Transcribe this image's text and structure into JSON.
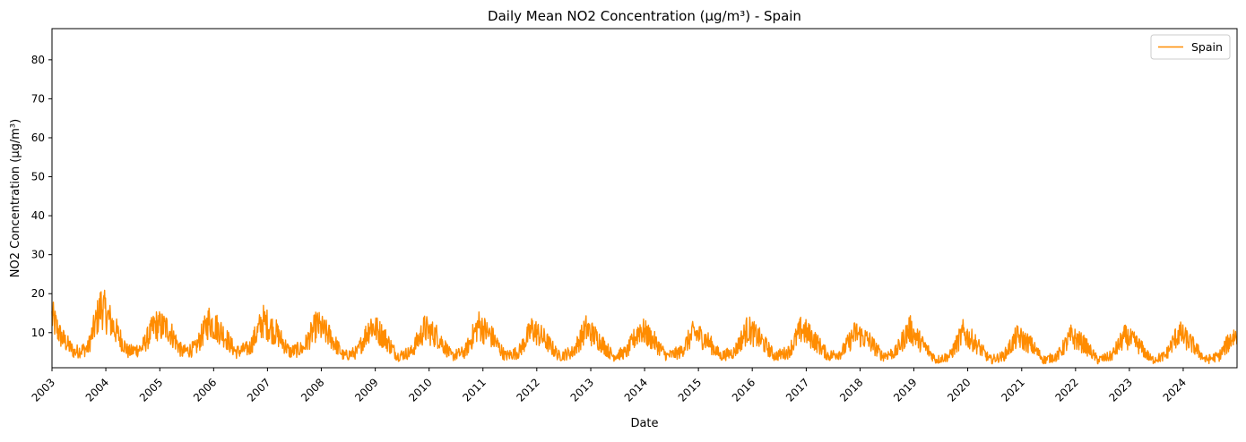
{
  "chart_data": {
    "type": "line",
    "title": "Daily Mean NO2 Concentration (µg/m³) - Spain",
    "xlabel": "Date",
    "ylabel": "NO2 Concentration (µg/m³)",
    "xlim": [
      "2003-01-01",
      "2024-12-31"
    ],
    "ylim": [
      1,
      88
    ],
    "y_ticks": [
      10,
      20,
      30,
      40,
      50,
      60,
      70,
      80
    ],
    "x_ticks": [
      "2003",
      "2004",
      "2005",
      "2006",
      "2007",
      "2008",
      "2009",
      "2010",
      "2011",
      "2012",
      "2013",
      "2014",
      "2015",
      "2016",
      "2017",
      "2018",
      "2019",
      "2020",
      "2021",
      "2022",
      "2023",
      "2024"
    ],
    "grid": false,
    "legend_position": "top-right",
    "series": [
      {
        "name": "Spain",
        "color": "#ff8c00",
        "x": [
          "2003-01-01",
          "2003-03-01",
          "2003-06-01",
          "2003-09-01",
          "2003-12-01",
          "2004-03-01",
          "2004-06-01",
          "2004-09-01",
          "2004-12-01",
          "2005-03-01",
          "2005-06-01",
          "2005-09-01",
          "2005-12-01",
          "2006-03-01",
          "2006-06-01",
          "2006-09-01",
          "2006-12-01",
          "2007-03-01",
          "2007-06-01",
          "2007-09-01",
          "2007-12-01",
          "2008-03-01",
          "2008-06-01",
          "2008-09-01",
          "2008-12-01",
          "2009-03-01",
          "2009-06-01",
          "2009-09-01",
          "2009-12-01",
          "2010-03-01",
          "2010-06-01",
          "2010-09-01",
          "2010-12-01",
          "2011-03-01",
          "2011-06-01",
          "2011-09-01",
          "2011-12-01",
          "2012-03-01",
          "2012-06-01",
          "2012-09-01",
          "2012-12-01",
          "2013-03-01",
          "2013-06-01",
          "2013-09-01",
          "2013-12-01",
          "2014-03-01",
          "2014-06-01",
          "2014-09-01",
          "2014-12-01",
          "2015-03-01",
          "2015-06-01",
          "2015-09-01",
          "2015-12-01",
          "2016-03-01",
          "2016-06-01",
          "2016-09-01",
          "2016-12-01",
          "2017-03-01",
          "2017-06-01",
          "2017-09-01",
          "2017-12-01",
          "2018-03-01",
          "2018-06-01",
          "2018-09-01",
          "2018-12-01",
          "2019-03-01",
          "2019-06-01",
          "2019-09-01",
          "2019-12-01",
          "2020-03-01",
          "2020-06-01",
          "2020-09-01",
          "2020-12-01",
          "2021-03-01",
          "2021-06-01",
          "2021-09-01",
          "2021-12-01",
          "2022-03-01",
          "2022-06-01",
          "2022-09-01",
          "2022-12-01",
          "2023-03-01",
          "2023-06-01",
          "2023-09-01",
          "2023-12-01",
          "2024-03-01",
          "2024-06-01",
          "2024-09-01",
          "2024-12-01"
        ],
        "values": [
          14,
          9,
          5,
          6,
          17,
          11,
          5,
          6,
          12,
          11,
          5,
          6,
          13,
          10,
          5,
          6,
          13,
          10,
          5,
          6,
          12,
          9,
          4,
          5,
          12,
          9,
          4,
          5,
          11,
          9,
          4,
          5,
          12,
          9,
          4,
          5,
          11,
          8,
          4,
          5,
          11,
          8,
          4,
          5,
          11,
          8,
          4,
          5,
          10,
          8,
          4,
          5,
          11,
          8,
          4,
          5,
          11,
          8,
          4,
          5,
          10,
          8,
          4,
          5,
          11,
          7,
          3,
          4,
          10,
          7,
          3,
          4,
          9,
          7,
          3,
          4,
          9,
          7,
          3,
          4,
          9,
          7,
          3,
          4,
          10,
          7,
          3,
          4,
          9
        ]
      }
    ]
  }
}
